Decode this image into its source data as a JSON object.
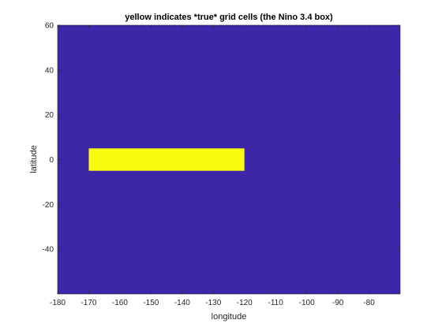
{
  "chart_data": {
    "type": "heatmap",
    "title": "yellow indicates *true* grid cells (the Nino 3.4 box)",
    "xlabel": "longitude",
    "ylabel": "latitude",
    "xlim": [
      -180,
      -70
    ],
    "ylim": [
      -60,
      60
    ],
    "xticks": [
      -180,
      -170,
      -160,
      -150,
      -140,
      -130,
      -120,
      -110,
      -100,
      -90,
      -80
    ],
    "yticks": [
      -40,
      -20,
      0,
      20,
      40,
      60
    ],
    "background_value": false,
    "true_region": {
      "lon": [
        -170,
        -120
      ],
      "lat": [
        -5,
        5
      ]
    },
    "colors": {
      "false": "#3e26a8",
      "true": "#f9fb0e"
    },
    "grid": false,
    "legend": "none"
  }
}
